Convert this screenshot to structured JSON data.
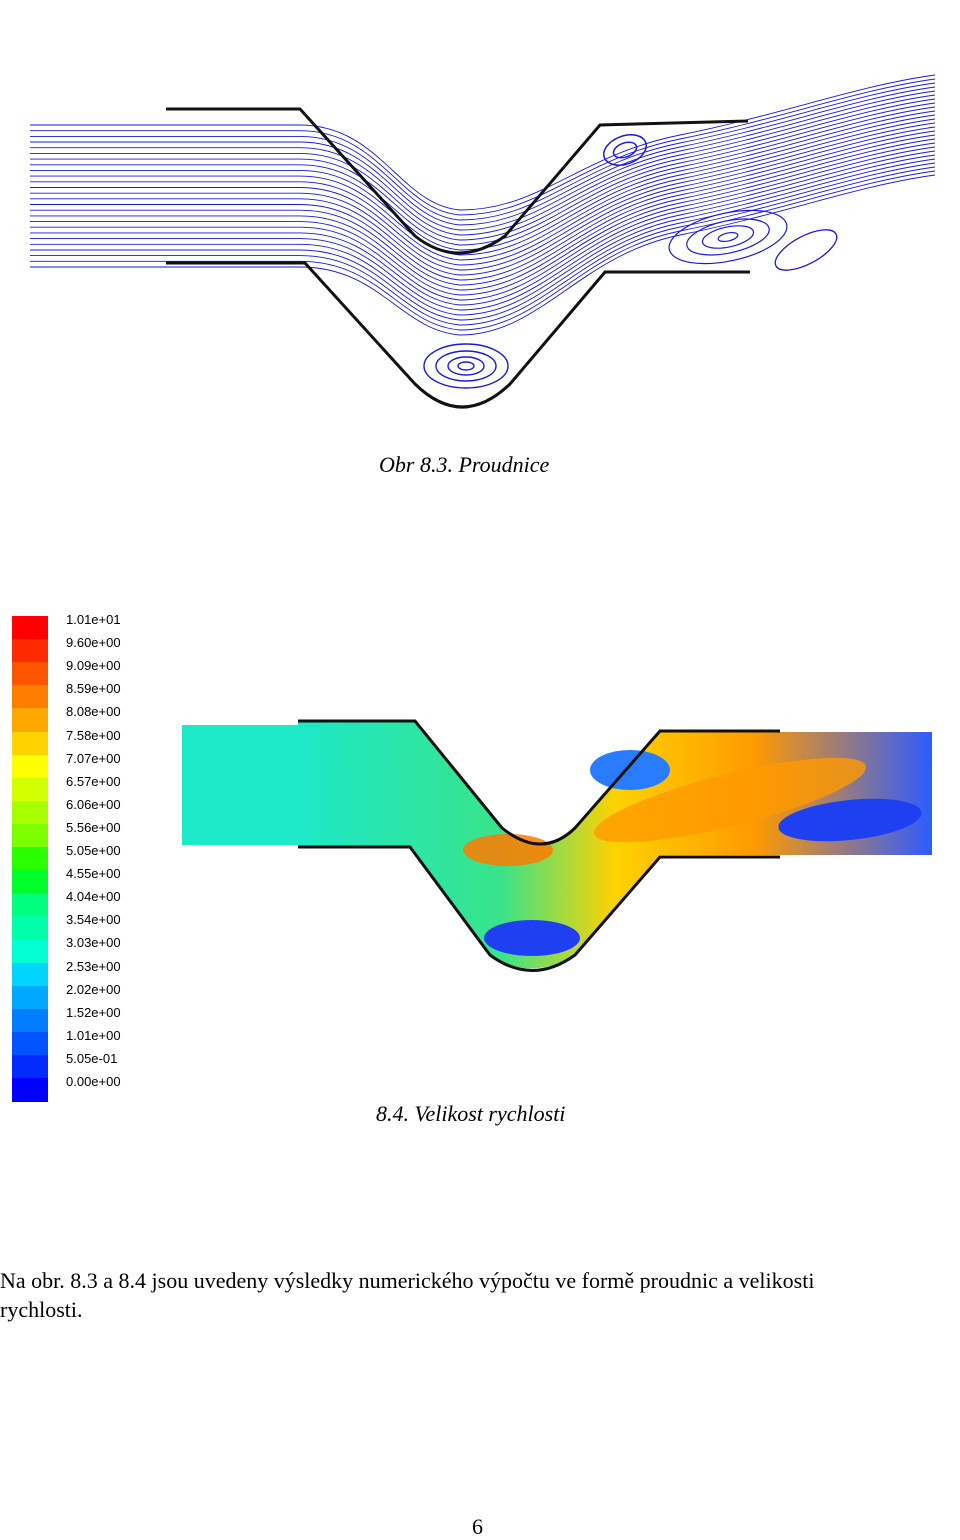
{
  "figure1": {
    "caption": "Obr 8.3. Proudnice",
    "streamline_color": "#1a1adc"
  },
  "figure2": {
    "caption": "8.4. Velikost rychlosti",
    "legend": [
      {
        "label": "1.01e+01",
        "color": "#ff0000"
      },
      {
        "label": "9.60e+00",
        "color": "#ff2a00"
      },
      {
        "label": "9.09e+00",
        "color": "#ff5400"
      },
      {
        "label": "8.59e+00",
        "color": "#ff7e00"
      },
      {
        "label": "8.08e+00",
        "color": "#ffa800"
      },
      {
        "label": "7.58e+00",
        "color": "#ffd200"
      },
      {
        "label": "7.07e+00",
        "color": "#ffff00"
      },
      {
        "label": "6.57e+00",
        "color": "#d4ff00"
      },
      {
        "label": "6.06e+00",
        "color": "#a8ff00"
      },
      {
        "label": "5.56e+00",
        "color": "#7eff00"
      },
      {
        "label": "5.05e+00",
        "color": "#2aff00"
      },
      {
        "label": "4.55e+00",
        "color": "#00ff2a"
      },
      {
        "label": "4.04e+00",
        "color": "#00ff7e"
      },
      {
        "label": "3.54e+00",
        "color": "#00ffa8"
      },
      {
        "label": "3.03e+00",
        "color": "#00ffd2"
      },
      {
        "label": "2.53e+00",
        "color": "#00d4ff"
      },
      {
        "label": "2.02e+00",
        "color": "#00a8ff"
      },
      {
        "label": "1.52e+00",
        "color": "#007eff"
      },
      {
        "label": "1.01e+00",
        "color": "#0054ff"
      },
      {
        "label": "5.05e-01",
        "color": "#002aff"
      },
      {
        "label": "0.00e+00",
        "color": "#0000ff"
      }
    ]
  },
  "paragraph": {
    "line1": "Na obr. 8.3 a 8.4 jsou  uvedeny výsledky numerického výpočtu ve formě proudnic a velikosti",
    "line2": "rychlosti."
  },
  "page_number": "6"
}
